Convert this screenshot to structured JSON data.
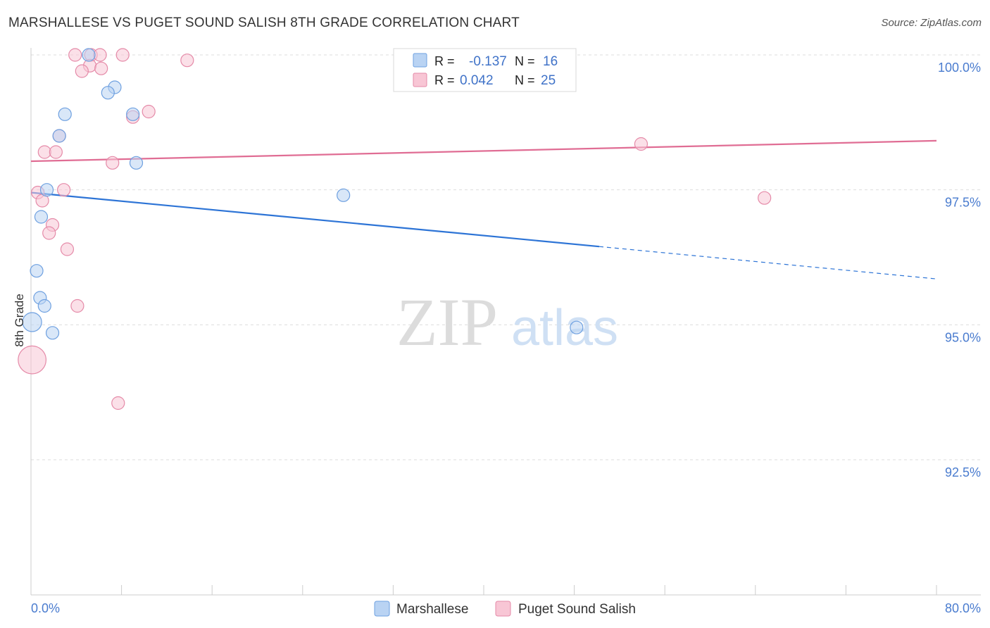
{
  "header": {
    "title": "MARSHALLESE VS PUGET SOUND SALISH 8TH GRADE CORRELATION CHART",
    "source": "Source: ZipAtlas.com"
  },
  "watermark": {
    "zip": "ZIP",
    "atlas": "atlas"
  },
  "legend_box": {
    "rows": [
      {
        "r_label": "R =",
        "r_value": "-0.137",
        "n_label": "N =",
        "n_value": "16"
      },
      {
        "r_label": "R =",
        "r_value": "0.042",
        "n_label": "N =",
        "n_value": "25"
      }
    ]
  },
  "colors": {
    "blue_fill": "#b9d3f3",
    "blue_stroke": "#6ea0e0",
    "blue_line": "#2d74d6",
    "pink_fill": "#f8c6d5",
    "pink_stroke": "#e58aa8",
    "pink_line": "#e06d94",
    "tick_label": "#4a7ccf",
    "grid": "#dddddd"
  },
  "chart_data": {
    "type": "scatter",
    "title": "MARSHALLESE VS PUGET SOUND SALISH 8TH GRADE CORRELATION CHART",
    "xlabel": "",
    "ylabel": "8th Grade",
    "xlim": [
      0,
      80
    ],
    "ylim": [
      90.0,
      100.3
    ],
    "x_tick_labels": [
      "0.0%",
      "80.0%"
    ],
    "y_ticks": [
      92.5,
      95.0,
      97.5,
      100.0
    ],
    "y_tick_labels": [
      "92.5%",
      "95.0%",
      "97.5%",
      "100.0%"
    ],
    "grid": "horizontal dashed",
    "legend_position": "bottom-center",
    "series": [
      {
        "name": "Marshallese",
        "color": "blue",
        "r": -0.137,
        "n": 16,
        "points": [
          {
            "x": 5.1,
            "y": 100.0,
            "s": 1
          },
          {
            "x": 7.4,
            "y": 99.4,
            "s": 1
          },
          {
            "x": 6.8,
            "y": 99.3,
            "s": 1
          },
          {
            "x": 3.0,
            "y": 98.9,
            "s": 1
          },
          {
            "x": 9.0,
            "y": 98.9,
            "s": 1
          },
          {
            "x": 2.5,
            "y": 98.5,
            "s": 1
          },
          {
            "x": 9.3,
            "y": 98.0,
            "s": 1
          },
          {
            "x": 1.4,
            "y": 97.5,
            "s": 1
          },
          {
            "x": 27.6,
            "y": 97.4,
            "s": 1
          },
          {
            "x": 0.9,
            "y": 97.0,
            "s": 1
          },
          {
            "x": 0.5,
            "y": 96.0,
            "s": 1
          },
          {
            "x": 0.8,
            "y": 95.5,
            "s": 1
          },
          {
            "x": 1.2,
            "y": 95.35,
            "s": 1
          },
          {
            "x": 0.1,
            "y": 95.05,
            "s": 1.5
          },
          {
            "x": 1.9,
            "y": 94.85,
            "s": 1
          },
          {
            "x": 48.2,
            "y": 94.95,
            "s": 1
          }
        ],
        "trend": {
          "x1": 0,
          "y1": 97.45,
          "x2": 50.2,
          "y2": 96.45,
          "dash_x2": 80,
          "dash_y2": 95.85
        }
      },
      {
        "name": "Puget Sound Salish",
        "color": "pink",
        "r": 0.042,
        "n": 25,
        "points": [
          {
            "x": 3.9,
            "y": 100.0,
            "s": 1
          },
          {
            "x": 5.3,
            "y": 100.0,
            "s": 1
          },
          {
            "x": 6.1,
            "y": 100.0,
            "s": 1
          },
          {
            "x": 8.1,
            "y": 100.0,
            "s": 1
          },
          {
            "x": 13.8,
            "y": 99.9,
            "s": 1
          },
          {
            "x": 5.2,
            "y": 99.8,
            "s": 1
          },
          {
            "x": 4.5,
            "y": 99.7,
            "s": 1
          },
          {
            "x": 6.2,
            "y": 99.75,
            "s": 1
          },
          {
            "x": 10.4,
            "y": 98.95,
            "s": 1
          },
          {
            "x": 9.0,
            "y": 98.85,
            "s": 1
          },
          {
            "x": 2.5,
            "y": 98.5,
            "s": 1
          },
          {
            "x": 1.2,
            "y": 98.2,
            "s": 1
          },
          {
            "x": 2.2,
            "y": 98.2,
            "s": 1
          },
          {
            "x": 53.9,
            "y": 98.35,
            "s": 1
          },
          {
            "x": 7.2,
            "y": 98.0,
            "s": 1
          },
          {
            "x": 2.9,
            "y": 97.5,
            "s": 1
          },
          {
            "x": 0.6,
            "y": 97.45,
            "s": 1
          },
          {
            "x": 1.0,
            "y": 97.3,
            "s": 1
          },
          {
            "x": 64.8,
            "y": 97.35,
            "s": 1
          },
          {
            "x": 1.9,
            "y": 96.85,
            "s": 1
          },
          {
            "x": 1.6,
            "y": 96.7,
            "s": 1
          },
          {
            "x": 3.2,
            "y": 96.4,
            "s": 1
          },
          {
            "x": 4.1,
            "y": 95.35,
            "s": 1
          },
          {
            "x": 0.1,
            "y": 94.35,
            "s": 2.2
          },
          {
            "x": 7.7,
            "y": 93.55,
            "s": 1
          }
        ],
        "trend": {
          "x1": 0,
          "y1": 98.03,
          "x2": 80,
          "y2": 98.41
        }
      }
    ]
  }
}
